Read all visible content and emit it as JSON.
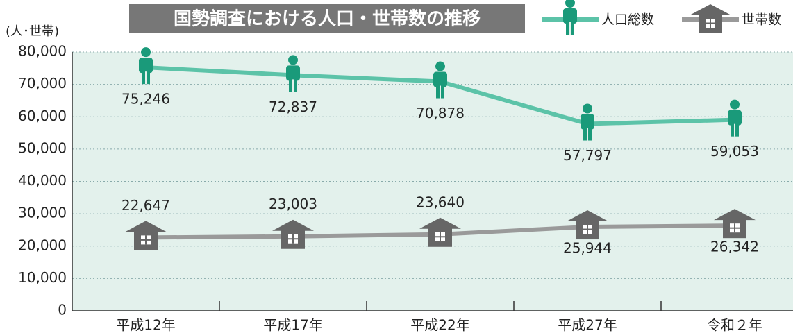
{
  "chart_data": {
    "type": "line",
    "title": "国勢調査における人口・世帯数の推移",
    "y_label": "(人･世帯)",
    "categories": [
      "平成12年",
      "平成17年",
      "平成22年",
      "平成27年",
      "令和２年"
    ],
    "series": [
      {
        "name": "人口総数",
        "color": "#5cc3a8",
        "marker_color": "#1a9a7a",
        "values": [
          75246,
          72837,
          70878,
          57797,
          59053
        ],
        "value_labels": [
          "75,246",
          "72,837",
          "70,878",
          "57,797",
          "59,053"
        ]
      },
      {
        "name": "世帯数",
        "color": "#9a9a9a",
        "marker_color": "#666666",
        "values": [
          22647,
          23003,
          23640,
          25944,
          26342
        ],
        "value_labels": [
          "22,647",
          "23,003",
          "23,640",
          "25,944",
          "26,342"
        ]
      }
    ],
    "ylim": [
      0,
      80000
    ],
    "yticks": [
      0,
      {
        "value": 10000,
        "label": "10,000"
      },
      {
        "value": 20000,
        "label": "20,000"
      },
      {
        "value": 30000,
        "label": "30,000"
      },
      {
        "value": 40000,
        "label": "40,000"
      },
      {
        "value": 50000,
        "label": "50,000"
      },
      {
        "value": 60000,
        "label": "60,000"
      },
      {
        "value": 70000,
        "label": "70,000"
      },
      {
        "value": 80000,
        "label": "80,000"
      }
    ],
    "grid": true
  }
}
